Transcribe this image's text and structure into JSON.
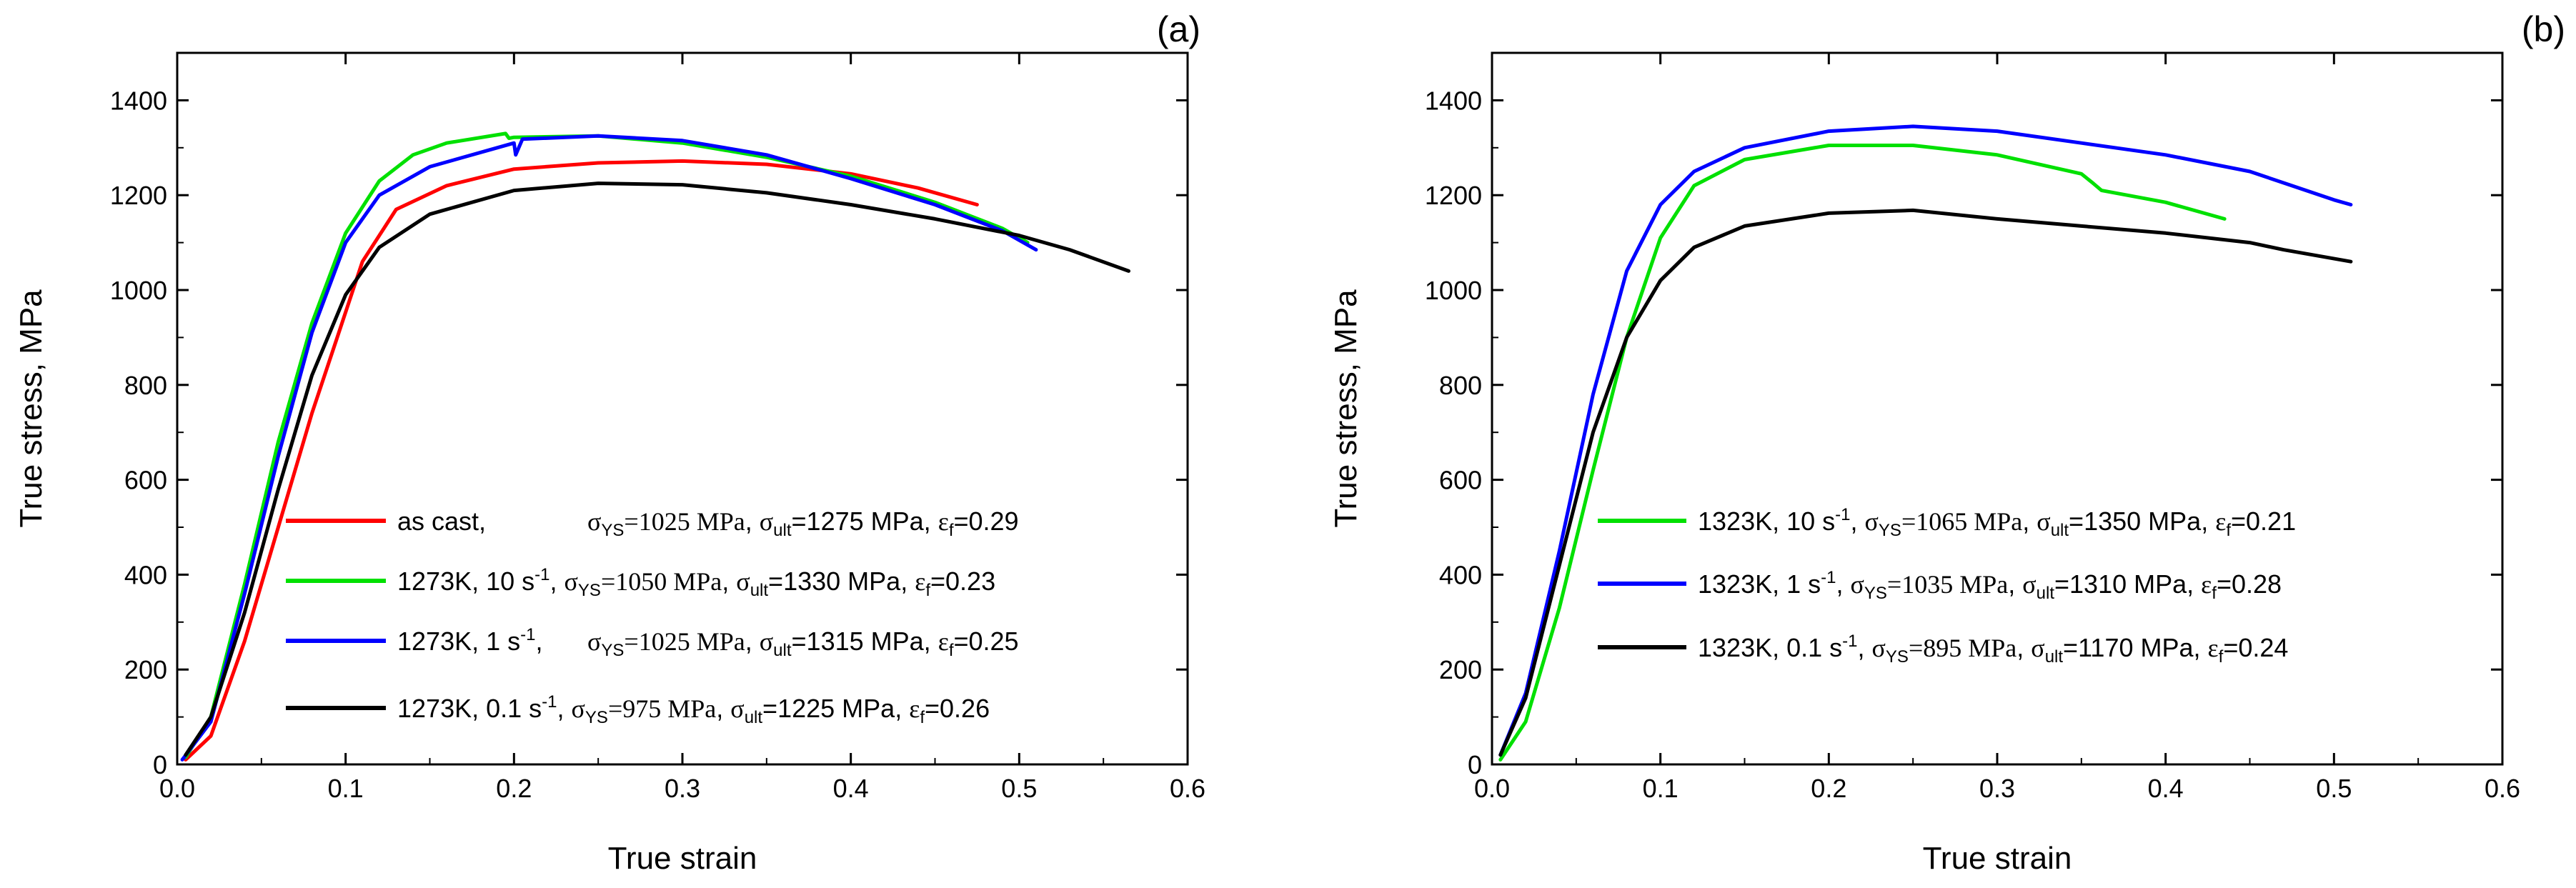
{
  "chart_data": [
    {
      "type": "line",
      "panel_label": "(a)",
      "xlabel": "True strain",
      "ylabel": "True stress, MPa",
      "xlim": [
        0.0,
        0.6
      ],
      "ylim": [
        0,
        1500
      ],
      "xticks": [
        "0.0",
        "0.1",
        "0.2",
        "0.3",
        "0.4",
        "0.5",
        "0.6"
      ],
      "yticks": [
        "0",
        "200",
        "400",
        "600",
        "800",
        "1000",
        "1200",
        "1400"
      ],
      "legend_position": "bottom-center",
      "series": [
        {
          "name": "as cast,",
          "color": "#ff0000",
          "legend": {
            "cond": "as cast,",
            "sr_base": "",
            "sr_exp": "",
            "ys": "1025 MPa",
            "ult": "=1275 MPa",
            "ef": "=0.29"
          },
          "points": [
            [
              0.005,
              10
            ],
            [
              0.02,
              60
            ],
            [
              0.04,
              260
            ],
            [
              0.06,
              500
            ],
            [
              0.08,
              740
            ],
            [
              0.095,
              900
            ],
            [
              0.11,
              1060
            ],
            [
              0.13,
              1170
            ],
            [
              0.16,
              1220
            ],
            [
              0.2,
              1255
            ],
            [
              0.25,
              1268
            ],
            [
              0.3,
              1272
            ],
            [
              0.35,
              1265
            ],
            [
              0.4,
              1245
            ],
            [
              0.44,
              1215
            ],
            [
              0.475,
              1180
            ]
          ]
        },
        {
          "name": "1273K, 10 s-1",
          "color": "#00e000",
          "legend": {
            "cond": "1273K, 10 s",
            "sr_base": "",
            "sr_exp": "-1",
            "ys": "1050 MPa",
            "ult": "=1330 MPa",
            "ef": "=0.23"
          },
          "points": [
            [
              0.005,
              15
            ],
            [
              0.02,
              100
            ],
            [
              0.04,
              380
            ],
            [
              0.06,
              680
            ],
            [
              0.08,
              930
            ],
            [
              0.1,
              1120
            ],
            [
              0.12,
              1230
            ],
            [
              0.14,
              1285
            ],
            [
              0.16,
              1310
            ],
            [
              0.195,
              1330
            ],
            [
              0.197,
              1320
            ],
            [
              0.2,
              1322
            ],
            [
              0.25,
              1325
            ],
            [
              0.3,
              1310
            ],
            [
              0.35,
              1280
            ],
            [
              0.4,
              1240
            ],
            [
              0.45,
              1185
            ],
            [
              0.49,
              1130
            ],
            [
              0.505,
              1100
            ]
          ]
        },
        {
          "name": "1273K, 1 s-1",
          "color": "#0000ff",
          "legend": {
            "cond": "1273K, 1 s",
            "sr_base": "",
            "sr_exp": "-1",
            "ys": "1025 MPa",
            "ult": "=1315 MPa",
            "ef": "=0.25"
          },
          "points": [
            [
              0.003,
              10
            ],
            [
              0.02,
              90
            ],
            [
              0.04,
              360
            ],
            [
              0.06,
              650
            ],
            [
              0.08,
              910
            ],
            [
              0.1,
              1100
            ],
            [
              0.12,
              1200
            ],
            [
              0.15,
              1260
            ],
            [
              0.19,
              1300
            ],
            [
              0.2,
              1310
            ],
            [
              0.201,
              1285
            ],
            [
              0.205,
              1318
            ],
            [
              0.25,
              1325
            ],
            [
              0.3,
              1315
            ],
            [
              0.35,
              1285
            ],
            [
              0.4,
              1235
            ],
            [
              0.45,
              1180
            ],
            [
              0.49,
              1125
            ],
            [
              0.51,
              1085
            ]
          ]
        },
        {
          "name": "1273K, 0.1 s-1",
          "color": "#000000",
          "legend": {
            "cond": "1273K, 0.1 s",
            "sr_base": "",
            "sr_exp": "-1",
            "ys": "975 MPa",
            "ult": "=1225 MPa",
            "ef": "=0.26"
          },
          "points": [
            [
              0.005,
              20
            ],
            [
              0.02,
              100
            ],
            [
              0.04,
              320
            ],
            [
              0.06,
              580
            ],
            [
              0.08,
              820
            ],
            [
              0.1,
              990
            ],
            [
              0.12,
              1090
            ],
            [
              0.15,
              1160
            ],
            [
              0.2,
              1210
            ],
            [
              0.25,
              1225
            ],
            [
              0.3,
              1222
            ],
            [
              0.35,
              1205
            ],
            [
              0.4,
              1180
            ],
            [
              0.45,
              1150
            ],
            [
              0.5,
              1115
            ],
            [
              0.53,
              1085
            ],
            [
              0.565,
              1040
            ]
          ]
        }
      ]
    },
    {
      "type": "line",
      "panel_label": "(b)",
      "xlabel": "True strain",
      "ylabel": "True stress, MPa",
      "xlim": [
        0.0,
        0.6
      ],
      "ylim": [
        0,
        1500
      ],
      "xticks": [
        "0.0",
        "0.1",
        "0.2",
        "0.3",
        "0.4",
        "0.5",
        "0.6"
      ],
      "yticks": [
        "0",
        "200",
        "400",
        "600",
        "800",
        "1000",
        "1200",
        "1400"
      ],
      "legend_position": "bottom-center",
      "series": [
        {
          "name": "1323K, 10 s-1",
          "color": "#00e000",
          "legend": {
            "cond": "1323K, 10 s",
            "sr_base": "",
            "sr_exp": "-1",
            "ys": "1065 MPa",
            "ult": "=1350 MPa",
            "ef": "=0.21"
          },
          "points": [
            [
              0.005,
              10
            ],
            [
              0.02,
              90
            ],
            [
              0.04,
              330
            ],
            [
              0.06,
              620
            ],
            [
              0.08,
              900
            ],
            [
              0.1,
              1110
            ],
            [
              0.12,
              1220
            ],
            [
              0.15,
              1275
            ],
            [
              0.2,
              1305
            ],
            [
              0.25,
              1305
            ],
            [
              0.3,
              1285
            ],
            [
              0.35,
              1245
            ],
            [
              0.357,
              1225
            ],
            [
              0.362,
              1210
            ],
            [
              0.4,
              1185
            ],
            [
              0.435,
              1150
            ]
          ]
        },
        {
          "name": "1323K, 1 s-1",
          "color": "#0000ff",
          "legend": {
            "cond": "1323K, 1 s",
            "sr_base": "",
            "sr_exp": "-1",
            "ys": "1035 MPa",
            "ult": "=1310 MPa",
            "ef": "=0.28"
          },
          "points": [
            [
              0.005,
              20
            ],
            [
              0.02,
              150
            ],
            [
              0.04,
              450
            ],
            [
              0.06,
              780
            ],
            [
              0.08,
              1040
            ],
            [
              0.1,
              1180
            ],
            [
              0.12,
              1250
            ],
            [
              0.15,
              1300
            ],
            [
              0.2,
              1335
            ],
            [
              0.25,
              1345
            ],
            [
              0.3,
              1335
            ],
            [
              0.35,
              1310
            ],
            [
              0.4,
              1285
            ],
            [
              0.45,
              1250
            ],
            [
              0.5,
              1190
            ],
            [
              0.51,
              1180
            ]
          ]
        },
        {
          "name": "1323K, 0.1 s-1",
          "color": "#000000",
          "legend": {
            "cond": "1323K, 0.1 s",
            "sr_base": "",
            "sr_exp": "-1",
            "ys": "895 MPa",
            "ult": "=1170 MPa",
            "ef": "=0.24"
          },
          "points": [
            [
              0.005,
              20
            ],
            [
              0.02,
              140
            ],
            [
              0.04,
              420
            ],
            [
              0.06,
              700
            ],
            [
              0.08,
              900
            ],
            [
              0.1,
              1020
            ],
            [
              0.12,
              1090
            ],
            [
              0.15,
              1135
            ],
            [
              0.2,
              1162
            ],
            [
              0.25,
              1168
            ],
            [
              0.3,
              1150
            ],
            [
              0.35,
              1135
            ],
            [
              0.4,
              1120
            ],
            [
              0.45,
              1100
            ],
            [
              0.47,
              1085
            ],
            [
              0.51,
              1060
            ]
          ]
        }
      ]
    }
  ]
}
